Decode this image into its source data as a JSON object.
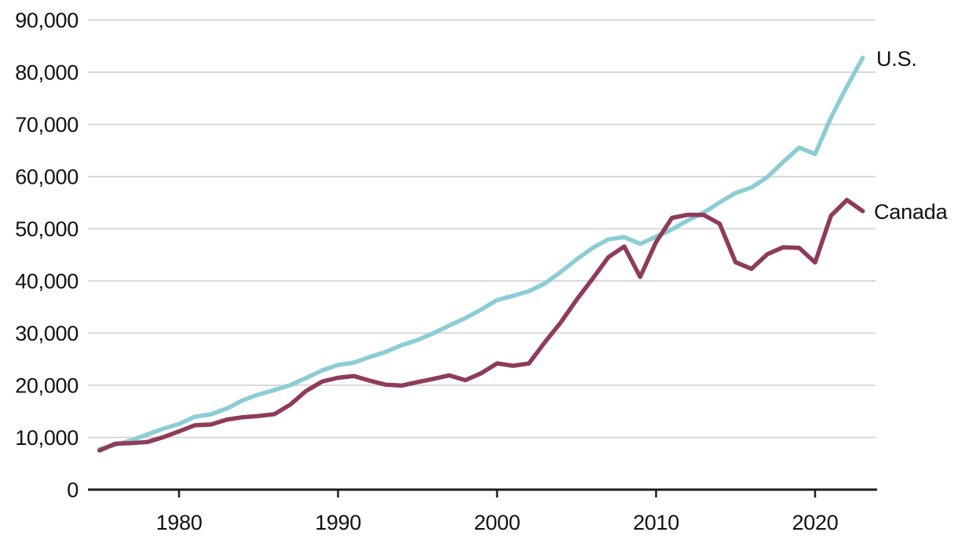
{
  "chart_data": {
    "type": "line",
    "title": "",
    "xlabel": "",
    "ylabel": "",
    "grid": true,
    "legend_position": "line-end-labels",
    "xlim": [
      1975,
      2023
    ],
    "ylim": [
      0,
      90000
    ],
    "x": [
      1975,
      1976,
      1977,
      1978,
      1979,
      1980,
      1981,
      1982,
      1983,
      1984,
      1985,
      1986,
      1987,
      1988,
      1989,
      1990,
      1991,
      1992,
      1993,
      1994,
      1995,
      1996,
      1997,
      1998,
      1999,
      2000,
      2001,
      2002,
      2003,
      2004,
      2005,
      2006,
      2007,
      2008,
      2009,
      2010,
      2011,
      2012,
      2013,
      2014,
      2015,
      2016,
      2017,
      2018,
      2019,
      2020,
      2021,
      2022,
      2023
    ],
    "series": [
      {
        "name": "U.S.",
        "color": "#8ccdd5",
        "values": [
          7801,
          8592,
          9453,
          10565,
          11674,
          12575,
          13976,
          14434,
          15544,
          17121,
          18237,
          19071,
          20039,
          21417,
          22857,
          23889,
          24342,
          25419,
          26387,
          27695,
          28691,
          29968,
          31459,
          32854,
          34515,
          36330,
          37134,
          38023,
          39496,
          41713,
          44115,
          46299,
          47976,
          48383,
          47100,
          48467,
          49883,
          51603,
          53107,
          55050,
          56863,
          57904,
          59908,
          62823,
          65548,
          64317,
          71318,
          77247,
          82769
        ]
      },
      {
        "name": "Canada",
        "color": "#8e3b5c",
        "values": [
          7511,
          8809,
          8919,
          9127,
          10044,
          11171,
          12337,
          12482,
          13425,
          13878,
          14115,
          14461,
          16309,
          18937,
          20716,
          21448,
          21768,
          20880,
          20121,
          19935,
          20613,
          21227,
          21902,
          20982,
          22300,
          24190,
          23738,
          24169,
          28229,
          32023,
          36382,
          40386,
          44544,
          46594,
          40773,
          47448,
          52087,
          52678,
          52635,
          50956,
          43586,
          42316,
          45129,
          46454,
          46328,
          43538,
          52515,
          55509,
          53372
        ]
      }
    ],
    "y_ticks": [
      0,
      10000,
      20000,
      30000,
      40000,
      50000,
      60000,
      70000,
      80000,
      90000
    ],
    "y_tick_labels": [
      "0",
      "10,000",
      "20,000",
      "30,000",
      "40,000",
      "50,000",
      "60,000",
      "70,000",
      "80,000",
      "90,000"
    ],
    "x_ticks": [
      1980,
      1990,
      2000,
      2010,
      2020
    ],
    "x_tick_labels": [
      "1980",
      "1990",
      "2000",
      "2010",
      "2020"
    ]
  },
  "colors": {
    "background": "#ffffff",
    "grid": "#d9d9d9",
    "axis": "#1d1d1f",
    "text": "#111111",
    "us_line": "#8ccdd5",
    "canada_line": "#8e3b5c"
  }
}
